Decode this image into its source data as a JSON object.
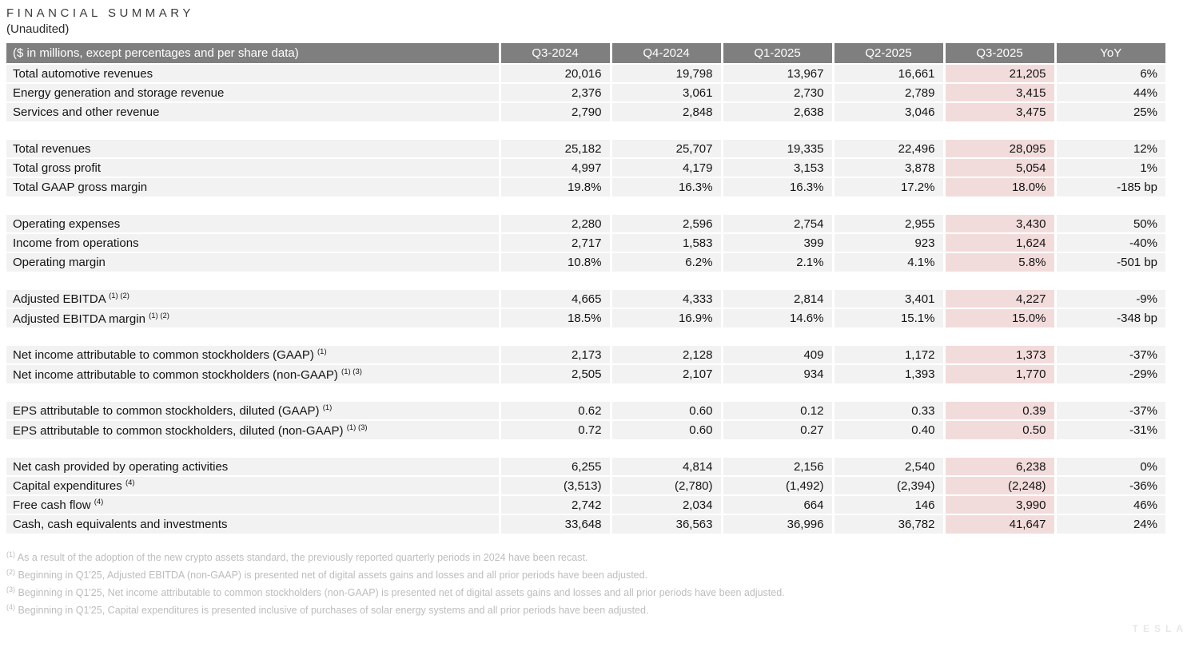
{
  "page": {
    "title": "FINANCIAL SUMMARY",
    "subtitle": "(Unaudited)",
    "watermark": "TESLA"
  },
  "colors": {
    "header_bg": "#7f7f7f",
    "row_bg": "#f2f2f2",
    "highlight_bg": "#f2dcdb",
    "footnote_text": "#bdbdbd"
  },
  "table": {
    "header_label": "($ in millions, except percentages and per share data)",
    "columns": [
      "Q3-2024",
      "Q4-2024",
      "Q1-2025",
      "Q2-2025",
      "Q3-2025",
      "YoY"
    ],
    "highlight_column_index": 4,
    "sections": [
      {
        "rows": [
          {
            "label": "Total automotive revenues",
            "sup": "",
            "values": [
              "20,016",
              "19,798",
              "13,967",
              "16,661",
              "21,205",
              "6%"
            ]
          },
          {
            "label": "Energy generation and storage revenue",
            "sup": "",
            "values": [
              "2,376",
              "3,061",
              "2,730",
              "2,789",
              "3,415",
              "44%"
            ]
          },
          {
            "label": "Services and other revenue",
            "sup": "",
            "values": [
              "2,790",
              "2,848",
              "2,638",
              "3,046",
              "3,475",
              "25%"
            ]
          }
        ]
      },
      {
        "rows": [
          {
            "label": "Total revenues",
            "sup": "",
            "values": [
              "25,182",
              "25,707",
              "19,335",
              "22,496",
              "28,095",
              "12%"
            ]
          },
          {
            "label": "Total gross profit",
            "sup": "",
            "values": [
              "4,997",
              "4,179",
              "3,153",
              "3,878",
              "5,054",
              "1%"
            ]
          },
          {
            "label": "Total GAAP gross margin",
            "sup": "",
            "values": [
              "19.8%",
              "16.3%",
              "16.3%",
              "17.2%",
              "18.0%",
              "-185 bp"
            ]
          }
        ]
      },
      {
        "rows": [
          {
            "label": "Operating expenses",
            "sup": "",
            "values": [
              "2,280",
              "2,596",
              "2,754",
              "2,955",
              "3,430",
              "50%"
            ]
          },
          {
            "label": "Income from operations",
            "sup": "",
            "values": [
              "2,717",
              "1,583",
              "399",
              "923",
              "1,624",
              "-40%"
            ]
          },
          {
            "label": "Operating margin",
            "sup": "",
            "values": [
              "10.8%",
              "6.2%",
              "2.1%",
              "4.1%",
              "5.8%",
              "-501 bp"
            ]
          }
        ]
      },
      {
        "rows": [
          {
            "label": "Adjusted EBITDA",
            "sup": "(1) (2)",
            "values": [
              "4,665",
              "4,333",
              "2,814",
              "3,401",
              "4,227",
              "-9%"
            ]
          },
          {
            "label": "Adjusted EBITDA margin",
            "sup": "(1) (2)",
            "values": [
              "18.5%",
              "16.9%",
              "14.6%",
              "15.1%",
              "15.0%",
              "-348 bp"
            ]
          }
        ]
      },
      {
        "rows": [
          {
            "label": "Net income attributable to common stockholders (GAAP)",
            "sup": "(1)",
            "values": [
              "2,173",
              "2,128",
              "409",
              "1,172",
              "1,373",
              "-37%"
            ]
          },
          {
            "label": "Net income attributable to common stockholders (non-GAAP)",
            "sup": "(1) (3)",
            "values": [
              "2,505",
              "2,107",
              "934",
              "1,393",
              "1,770",
              "-29%"
            ]
          }
        ]
      },
      {
        "rows": [
          {
            "label": "EPS attributable to common stockholders, diluted (GAAP)",
            "sup": "(1)",
            "values": [
              "0.62",
              "0.60",
              "0.12",
              "0.33",
              "0.39",
              "-37%"
            ]
          },
          {
            "label": "EPS attributable to common stockholders, diluted (non-GAAP)",
            "sup": "(1) (3)",
            "values": [
              "0.72",
              "0.60",
              "0.27",
              "0.40",
              "0.50",
              "-31%"
            ]
          }
        ]
      },
      {
        "rows": [
          {
            "label": "Net cash provided by operating activities",
            "sup": "",
            "values": [
              "6,255",
              "4,814",
              "2,156",
              "2,540",
              "6,238",
              "0%"
            ]
          },
          {
            "label": "Capital expenditures",
            "sup": "(4)",
            "values": [
              "(3,513)",
              "(2,780)",
              "(1,492)",
              "(2,394)",
              "(2,248)",
              "-36%"
            ]
          },
          {
            "label": "Free cash flow",
            "sup": "(4)",
            "values": [
              "2,742",
              "2,034",
              "664",
              "146",
              "3,990",
              "46%"
            ]
          },
          {
            "label": "Cash, cash equivalents and investments",
            "sup": "",
            "values": [
              "33,648",
              "36,563",
              "36,996",
              "36,782",
              "41,647",
              "24%"
            ]
          }
        ]
      }
    ]
  },
  "footnotes": [
    {
      "marker": "(1)",
      "text": "As a result of the adoption of the new crypto assets standard, the previously reported quarterly periods in 2024 have been recast."
    },
    {
      "marker": "(2)",
      "text": "Beginning in Q1'25, Adjusted EBITDA (non-GAAP) is presented net of digital assets gains and losses and all prior periods have been adjusted."
    },
    {
      "marker": "(3)",
      "text": "Beginning in Q1'25, Net income attributable to common stockholders (non-GAAP) is presented net of digital assets gains and losses and all prior periods have been adjusted."
    },
    {
      "marker": "(4)",
      "text": "Beginning in Q1'25, Capital expenditures is presented inclusive of purchases of solar energy systems and all prior periods have been adjusted."
    }
  ]
}
